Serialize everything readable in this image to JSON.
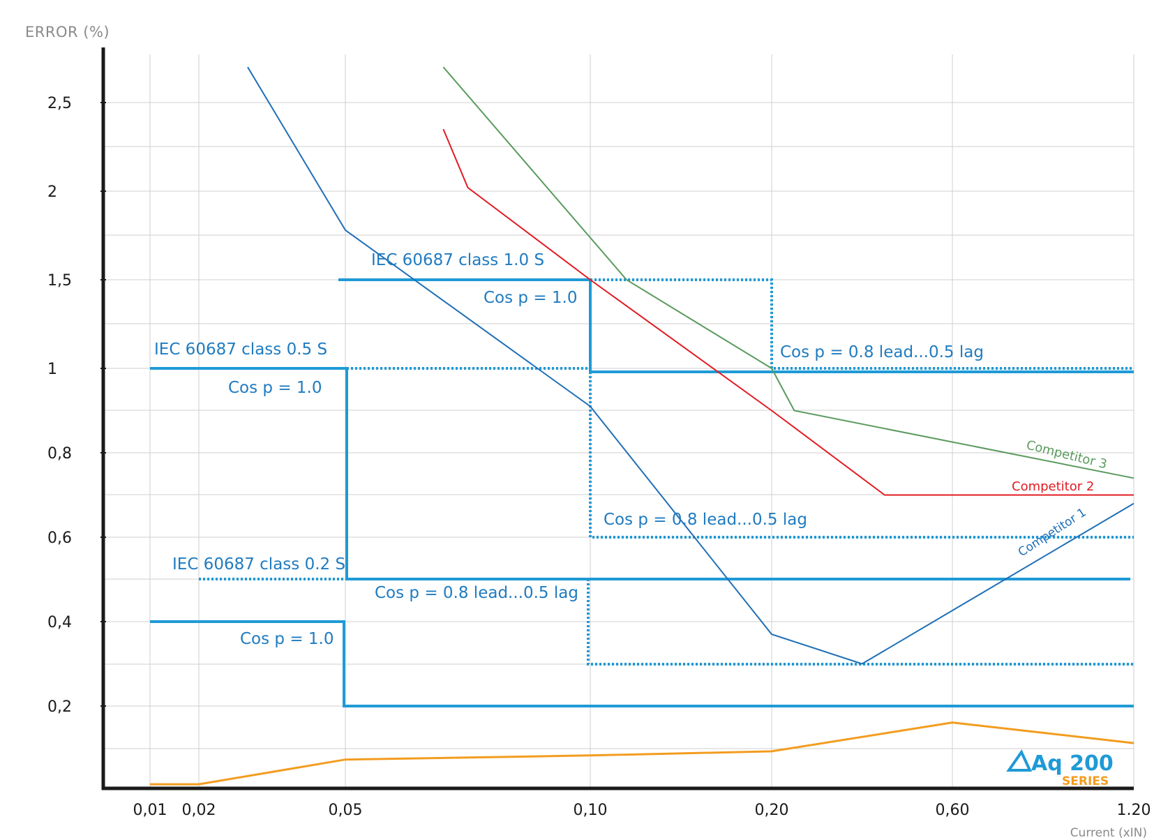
{
  "chart_data": {
    "type": "line",
    "ylabel": "ERROR (%)",
    "xlabel": "Current (xIN)",
    "x_ticks": [
      "0,01",
      "0,02",
      "0,05",
      "0,10",
      "0,20",
      "0,60",
      "1.20"
    ],
    "y_ticks": [
      "0,2",
      "0,4",
      "0,6",
      "0,8",
      "1",
      "1,5",
      "2",
      "2,5"
    ],
    "grid": true,
    "series": [
      {
        "name": "Competitor 1",
        "color": "#1f6fb6",
        "x": [
          "0,03",
          "0,05",
          "0,10",
          "0,20",
          "0,40",
          "1.20"
        ],
        "y": [
          2.7,
          1.78,
          0.91,
          0.37,
          0.3,
          0.68
        ]
      },
      {
        "name": "Competitor 2",
        "color": "#e11b22",
        "x": [
          "0,07",
          "0,075",
          "0,10",
          "0,20",
          "0,45",
          "1.20"
        ],
        "y": [
          2.35,
          2.02,
          1.5,
          0.9,
          0.7,
          0.7
        ]
      },
      {
        "name": "Competitor 3",
        "color": "#5a9a5e",
        "x": [
          "0,07",
          "0,12",
          "0,20",
          "0,25",
          "1.20"
        ],
        "y": [
          2.7,
          1.5,
          1.0,
          0.9,
          0.74
        ]
      },
      {
        "color": "#f39c1f",
        "x": [
          "0,01",
          "0,02",
          "0,05",
          "0,10",
          "0,20",
          "0,60",
          "1.20"
        ],
        "y": [
          0.01,
          0.01,
          0.07,
          0.08,
          0.09,
          0.16,
          0.11
        ]
      }
    ],
    "limits": [
      {
        "label": "IEC 60687 class 1.0 S",
        "cos_label": "Cos p = 1.0",
        "cos2_label": "Cos p = 0.8 lead...0.5 lag"
      },
      {
        "label": "IEC 60687 class 0.5 S",
        "cos_label": "Cos p = 1.0",
        "cos2_label": "Cos p = 0.8 lead...0.5 lag"
      },
      {
        "label": "IEC 60687 class 0.2 S",
        "cos_label": "Cos p = 1.0",
        "cos2_label": "Cos p = 0.8 lead...0.5 lag"
      }
    ],
    "logo": {
      "text": "Aq 200",
      "sub": "SERIES"
    }
  },
  "colors": {
    "limit": "#1f9ad6",
    "grid": "#cfcfcf",
    "axis": "#1a1a1a"
  }
}
